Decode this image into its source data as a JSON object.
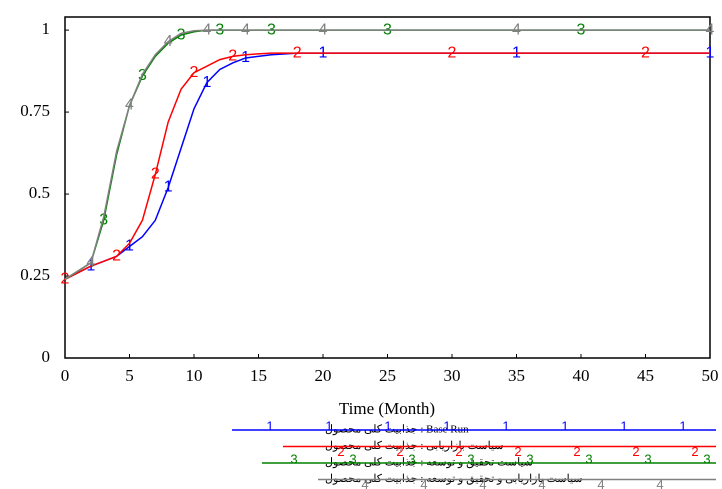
{
  "chart_data": {
    "type": "line",
    "xlabel": "Time (Month)",
    "x": [
      0,
      2,
      3,
      4,
      5,
      6,
      7,
      8,
      9,
      10,
      11,
      12,
      13,
      14,
      16,
      18,
      20,
      25,
      30,
      35,
      40,
      45,
      50
    ],
    "xlim": [
      0,
      50
    ],
    "xticks": [
      0,
      5,
      10,
      15,
      20,
      25,
      30,
      35,
      40,
      45,
      50
    ],
    "ylim": [
      0,
      1.04
    ],
    "yticks": [
      0,
      0.25,
      0.5,
      0.75,
      1
    ],
    "series": [
      {
        "name": "Base Run : جذابیت کلی محصول",
        "marker": "1",
        "color": "#0000ff",
        "values": [
          0.24,
          0.28,
          0.295,
          0.31,
          0.34,
          0.37,
          0.42,
          0.52,
          0.64,
          0.76,
          0.84,
          0.88,
          0.9,
          0.915,
          0.925,
          0.93,
          0.93,
          0.93,
          0.93,
          0.93,
          0.93,
          0.93,
          0.93
        ]
      },
      {
        "name": "سیاست بازاریابی : جذابیت کلی محصول",
        "marker": "2",
        "color": "#ff0000",
        "values": [
          0.24,
          0.28,
          0.295,
          0.31,
          0.35,
          0.42,
          0.56,
          0.72,
          0.82,
          0.87,
          0.89,
          0.91,
          0.92,
          0.925,
          0.93,
          0.93,
          0.93,
          0.93,
          0.93,
          0.93,
          0.93,
          0.93,
          0.93
        ]
      },
      {
        "name": "سیاست تحقیق و توسعه : جذابیت کلی محصول",
        "marker": "3",
        "color": "#008000",
        "values": [
          0.24,
          0.29,
          0.42,
          0.62,
          0.77,
          0.86,
          0.92,
          0.96,
          0.985,
          0.995,
          1,
          1,
          1,
          1,
          1,
          1,
          1,
          1,
          1,
          1,
          1,
          1,
          1
        ]
      },
      {
        "name": "سیاست بازاریابی و تحقیق و توسعه : جذابیت کلی محصول",
        "marker": "4",
        "color": "#808080",
        "values": [
          0.24,
          0.29,
          0.43,
          0.63,
          0.77,
          0.865,
          0.925,
          0.965,
          0.99,
          0.998,
          1,
          1,
          1,
          1,
          1,
          1,
          1,
          1,
          1,
          1,
          1,
          1,
          1
        ]
      }
    ]
  }
}
